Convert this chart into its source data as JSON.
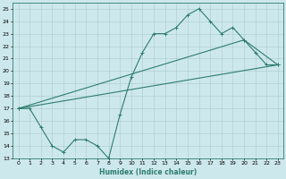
{
  "line1_x": [
    0,
    1,
    2,
    3,
    4,
    5,
    6,
    7,
    8,
    9,
    10,
    11,
    12,
    13,
    14,
    15,
    16,
    17,
    18,
    19,
    20,
    21,
    22,
    23
  ],
  "line1_y": [
    17,
    17,
    15.5,
    14,
    13.5,
    14.5,
    14.5,
    14,
    13,
    16.5,
    19.5,
    21.5,
    23,
    23,
    23.5,
    24.5,
    25,
    24,
    23,
    23.5,
    22.5,
    21.5,
    20.5,
    20.5
  ],
  "line2_x": [
    0,
    20,
    23
  ],
  "line2_y": [
    17,
    22.5,
    20.5
  ],
  "line3_x": [
    0,
    23
  ],
  "line3_y": [
    17,
    20.5
  ],
  "xlabel": "Humidex (Indice chaleur)",
  "xlim": [
    -0.5,
    23.5
  ],
  "ylim": [
    13,
    25.5
  ],
  "yticks": [
    13,
    14,
    15,
    16,
    17,
    18,
    19,
    20,
    21,
    22,
    23,
    24,
    25
  ],
  "xticks": [
    0,
    1,
    2,
    3,
    4,
    5,
    6,
    7,
    8,
    9,
    10,
    11,
    12,
    13,
    14,
    15,
    16,
    17,
    18,
    19,
    20,
    21,
    22,
    23
  ],
  "line_color": "#2d7d6e",
  "bg_color": "#cde8ec",
  "grid_color": "#aacccc"
}
